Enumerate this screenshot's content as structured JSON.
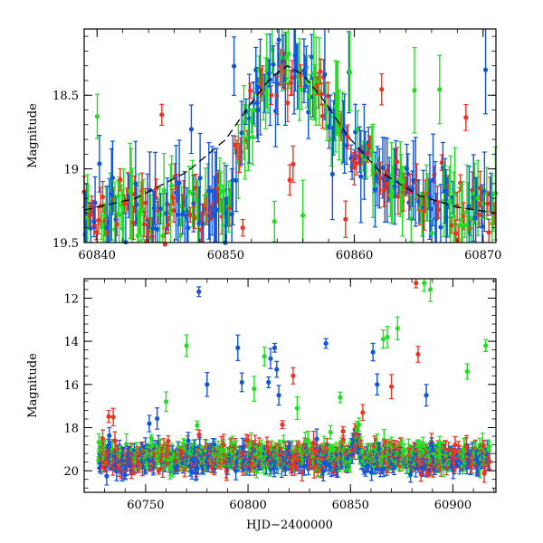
{
  "chart_data": [
    {
      "type": "scatter",
      "panel": "top",
      "xlabel": "",
      "ylabel": "Magnitude",
      "xlim": [
        60839,
        60871
      ],
      "ylim": [
        19.5,
        18.05
      ],
      "y_inverted": true,
      "xticks": [
        60840,
        60850,
        60860,
        60870
      ],
      "yticks": [
        18.5,
        19,
        19.5
      ],
      "xtick_labels": [
        "60840",
        "60850",
        "60860",
        "60870"
      ],
      "ytick_labels": [
        "18.5",
        "19",
        "19.5"
      ],
      "grid": false,
      "legend": "none",
      "series": [
        {
          "color": "#22dd22",
          "marker": "point-with-errorbar",
          "approx_x_range": [
            60839,
            60871
          ],
          "approx_y_range": [
            18.1,
            19.5
          ]
        },
        {
          "color": "#ee3322",
          "marker": "point-with-errorbar",
          "approx_x_range": [
            60840,
            60871
          ],
          "approx_y_range": [
            18.3,
            19.5
          ]
        },
        {
          "color": "#1155dd",
          "marker": "point-with-errorbar",
          "approx_x_range": [
            60839,
            60871
          ],
          "approx_y_range": [
            18.1,
            19.5
          ]
        }
      ],
      "model_curve": {
        "style": "dashed",
        "color": "#000000",
        "peak_x": 60854.8,
        "peak_y": 18.3,
        "baseline_y": 19.33,
        "points": [
          [
            60839,
            19.28
          ],
          [
            60843,
            19.2
          ],
          [
            60847,
            19.02
          ],
          [
            60850,
            18.8
          ],
          [
            60852,
            18.55
          ],
          [
            60853.5,
            18.38
          ],
          [
            60854.8,
            18.3
          ],
          [
            60856,
            18.36
          ],
          [
            60857.5,
            18.52
          ],
          [
            60859.5,
            18.78
          ],
          [
            60862,
            19.02
          ],
          [
            60865,
            19.18
          ],
          [
            60868,
            19.26
          ],
          [
            60871,
            19.3
          ]
        ]
      }
    },
    {
      "type": "scatter",
      "panel": "bottom",
      "xlabel": "HJD−2400000",
      "ylabel": "Magnitude",
      "xlim": [
        60720,
        60921
      ],
      "ylim": [
        21,
        11.1
      ],
      "y_inverted": true,
      "xticks": [
        60750,
        60800,
        60850,
        60900
      ],
      "yticks": [
        12,
        14,
        16,
        18,
        20
      ],
      "xtick_labels": [
        "60750",
        "60800",
        "60850",
        "60900"
      ],
      "ytick_labels": [
        "12",
        "14",
        "16",
        "18",
        "20"
      ],
      "grid": false,
      "legend": "none",
      "series": [
        {
          "color": "#22dd22",
          "marker": "point-with-errorbar",
          "baseline_y": 19.3
        },
        {
          "color": "#ee3322",
          "marker": "point-with-errorbar",
          "baseline_y": 19.4
        },
        {
          "color": "#1155dd",
          "marker": "point-with-errorbar",
          "baseline_y": 19.5
        }
      ],
      "outliers": [
        {
          "x": 60776,
          "y": 11.7,
          "color": "#1155dd"
        },
        {
          "x": 60780,
          "y": 16.0,
          "color": "#1155dd"
        },
        {
          "x": 60795,
          "y": 14.3,
          "color": "#1155dd"
        },
        {
          "x": 60797,
          "y": 15.9,
          "color": "#1155dd"
        },
        {
          "x": 60810,
          "y": 15.9,
          "color": "#1155dd"
        },
        {
          "x": 60811,
          "y": 14.8,
          "color": "#1155dd"
        },
        {
          "x": 60813,
          "y": 14.3,
          "color": "#1155dd"
        },
        {
          "x": 60814,
          "y": 15.3,
          "color": "#1155dd"
        },
        {
          "x": 60815,
          "y": 16.5,
          "color": "#1155dd"
        },
        {
          "x": 60838,
          "y": 14.1,
          "color": "#1155dd"
        },
        {
          "x": 60861,
          "y": 14.5,
          "color": "#1155dd"
        },
        {
          "x": 60863,
          "y": 16.0,
          "color": "#1155dd"
        },
        {
          "x": 60887,
          "y": 16.5,
          "color": "#1155dd"
        },
        {
          "x": 60770,
          "y": 14.2,
          "color": "#22dd22"
        },
        {
          "x": 60760,
          "y": 16.8,
          "color": "#22dd22"
        },
        {
          "x": 60803,
          "y": 16.2,
          "color": "#22dd22"
        },
        {
          "x": 60808,
          "y": 14.7,
          "color": "#22dd22"
        },
        {
          "x": 60824,
          "y": 17.1,
          "color": "#22dd22"
        },
        {
          "x": 60845,
          "y": 16.6,
          "color": "#22dd22"
        },
        {
          "x": 60866,
          "y": 13.9,
          "color": "#22dd22"
        },
        {
          "x": 60868,
          "y": 13.8,
          "color": "#22dd22"
        },
        {
          "x": 60873,
          "y": 13.4,
          "color": "#22dd22"
        },
        {
          "x": 60886,
          "y": 11.3,
          "color": "#22dd22"
        },
        {
          "x": 60889,
          "y": 11.6,
          "color": "#22dd22"
        },
        {
          "x": 60907,
          "y": 15.4,
          "color": "#22dd22"
        },
        {
          "x": 60916,
          "y": 14.2,
          "color": "#22dd22"
        },
        {
          "x": 60822,
          "y": 15.6,
          "color": "#ee3322"
        },
        {
          "x": 60832,
          "y": 18.7,
          "color": "#ee3322"
        },
        {
          "x": 60856,
          "y": 17.3,
          "color": "#ee3322"
        },
        {
          "x": 60870,
          "y": 16.1,
          "color": "#ee3322"
        },
        {
          "x": 60882,
          "y": 11.3,
          "color": "#ee3322"
        },
        {
          "x": 60883,
          "y": 14.6,
          "color": "#ee3322"
        },
        {
          "x": 60735,
          "y": 18.6,
          "color": "#ee3322"
        }
      ]
    }
  ]
}
